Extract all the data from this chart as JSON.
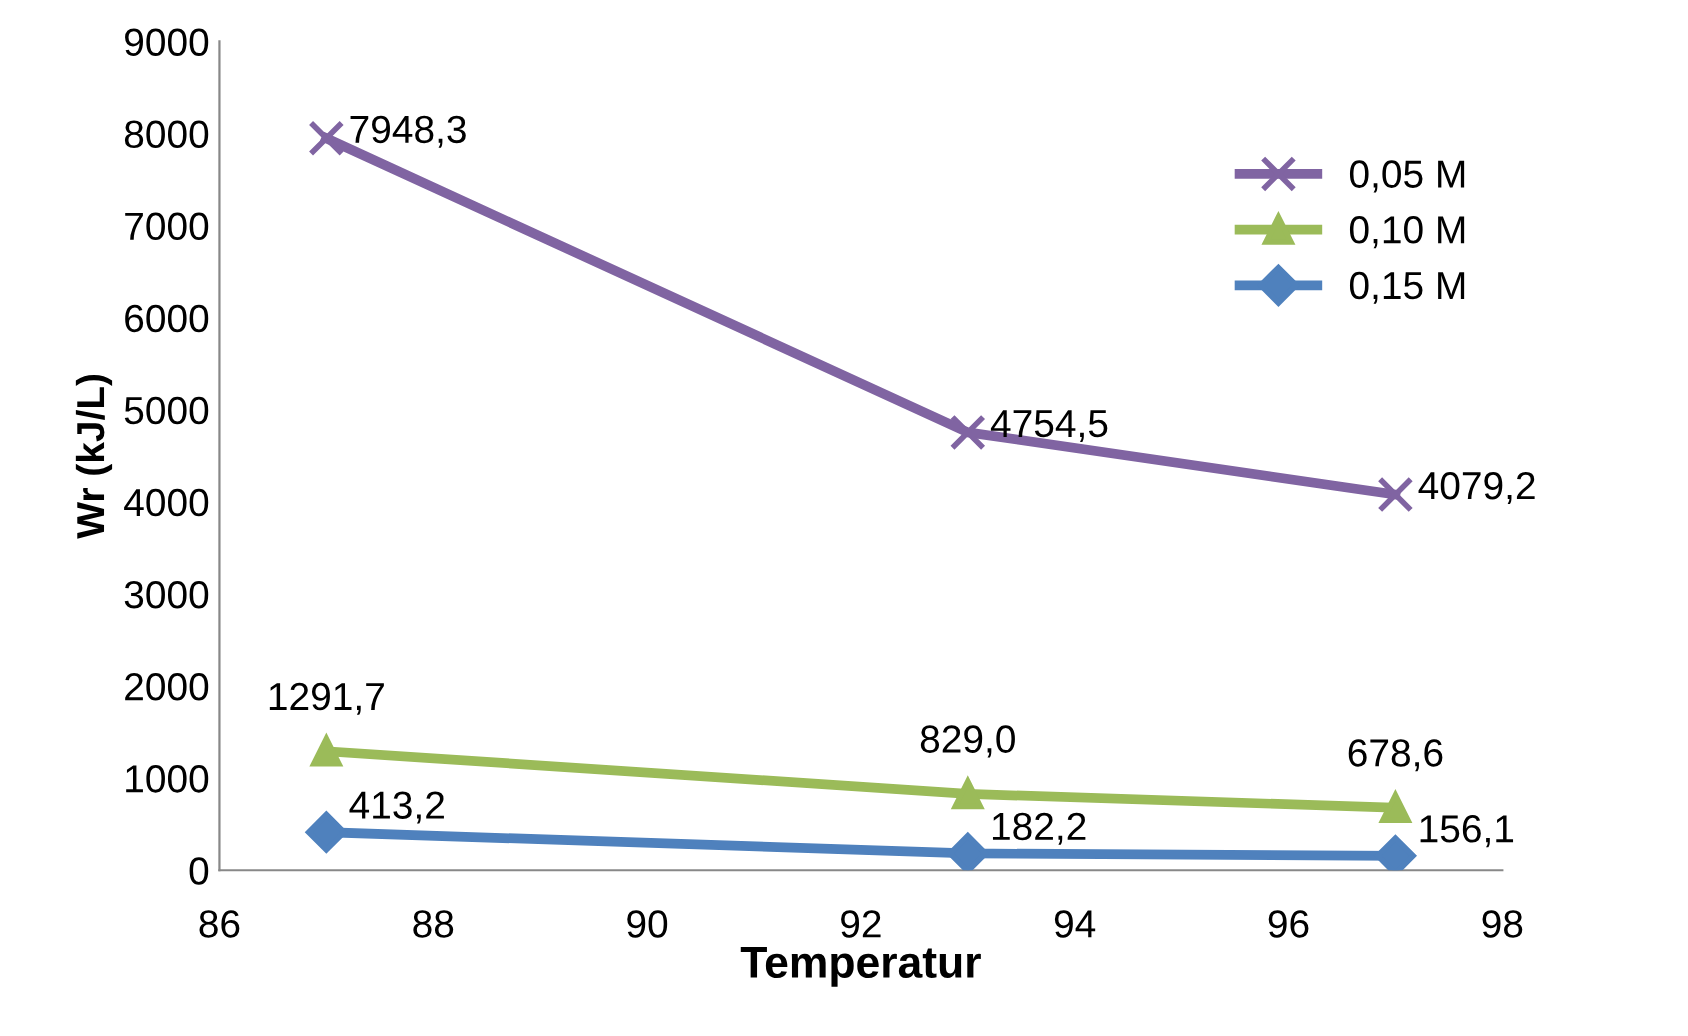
{
  "chart_data": {
    "type": "line",
    "xlabel": "Temperatur",
    "ylabel": "Wr (kJ/L)",
    "x": [
      87,
      93,
      97
    ],
    "series": [
      {
        "name": "0,05 M",
        "color": "#8064a2",
        "marker": "cross",
        "values": [
          7948.3,
          4754.5,
          4079.2
        ],
        "value_labels": [
          "7948,3",
          "4754,5",
          "4079,2"
        ]
      },
      {
        "name": "0,10 M",
        "color": "#9bbb59",
        "marker": "triangle",
        "values": [
          1291.7,
          829.0,
          678.6
        ],
        "value_labels": [
          "1291,7",
          "829,0",
          "678,6"
        ]
      },
      {
        "name": "0,15 M",
        "color": "#4f81bd",
        "marker": "diamond",
        "values": [
          413.2,
          182.2,
          156.1
        ],
        "value_labels": [
          "413,2",
          "182,2",
          "156,1"
        ]
      }
    ],
    "xlim": [
      86,
      98
    ],
    "xticks": [
      86,
      88,
      90,
      92,
      94,
      96,
      98
    ],
    "ylim": [
      0,
      9000
    ],
    "yticks": [
      0,
      1000,
      2000,
      3000,
      4000,
      5000,
      6000,
      7000,
      8000,
      9000
    ],
    "legend": "top right",
    "grid": false
  }
}
